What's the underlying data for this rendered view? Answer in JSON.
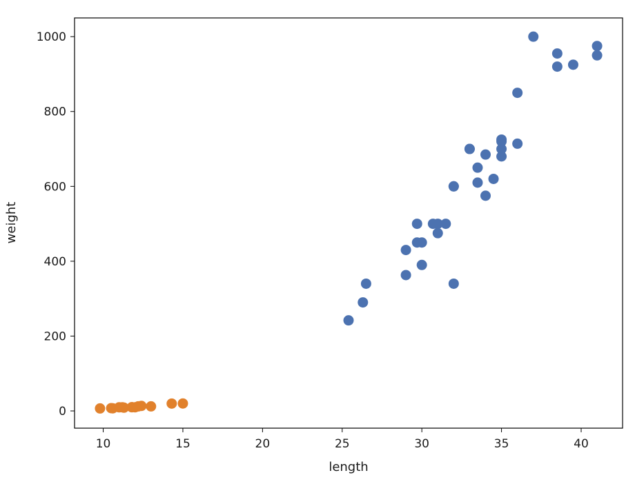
{
  "chart_data": {
    "type": "scatter",
    "title": "",
    "xlabel": "length",
    "ylabel": "weight",
    "xlim": [
      8.2,
      42.6
    ],
    "ylim": [
      -46,
      1050
    ],
    "xticks": [
      10,
      15,
      20,
      25,
      30,
      35,
      40
    ],
    "yticks": [
      0,
      200,
      400,
      600,
      800,
      1000
    ],
    "grid": false,
    "legend": "none",
    "series": [
      {
        "color": "#4c72b0",
        "points": [
          [
            25.4,
            242
          ],
          [
            26.3,
            290
          ],
          [
            26.5,
            340
          ],
          [
            29.0,
            363
          ],
          [
            29.0,
            430
          ],
          [
            29.7,
            450
          ],
          [
            29.7,
            500
          ],
          [
            30.0,
            390
          ],
          [
            30.0,
            450
          ],
          [
            30.7,
            500
          ],
          [
            31.0,
            475
          ],
          [
            31.0,
            500
          ],
          [
            31.5,
            500
          ],
          [
            32.0,
            340
          ],
          [
            32.0,
            600
          ],
          [
            32.0,
            600
          ],
          [
            33.0,
            700
          ],
          [
            33.0,
            700
          ],
          [
            33.5,
            610
          ],
          [
            33.5,
            650
          ],
          [
            34.0,
            575
          ],
          [
            34.0,
            685
          ],
          [
            34.5,
            620
          ],
          [
            35.0,
            680
          ],
          [
            35.0,
            700
          ],
          [
            35.0,
            725
          ],
          [
            35.0,
            720
          ],
          [
            36.0,
            714
          ],
          [
            36.0,
            850
          ],
          [
            37.0,
            1000
          ],
          [
            38.5,
            920
          ],
          [
            38.5,
            955
          ],
          [
            39.5,
            925
          ],
          [
            41.0,
            975
          ],
          [
            41.0,
            950
          ]
        ]
      },
      {
        "color": "#e1812c",
        "points": [
          [
            9.8,
            6.7
          ],
          [
            10.5,
            7.5
          ],
          [
            10.6,
            7.0
          ],
          [
            11.0,
            9.7
          ],
          [
            11.2,
            9.8
          ],
          [
            11.3,
            8.7
          ],
          [
            11.8,
            10.0
          ],
          [
            11.8,
            9.9
          ],
          [
            12.0,
            9.8
          ],
          [
            12.2,
            12.2
          ],
          [
            12.4,
            13.4
          ],
          [
            13.0,
            12.2
          ],
          [
            14.3,
            19.7
          ],
          [
            15.0,
            19.9
          ]
        ]
      }
    ]
  }
}
